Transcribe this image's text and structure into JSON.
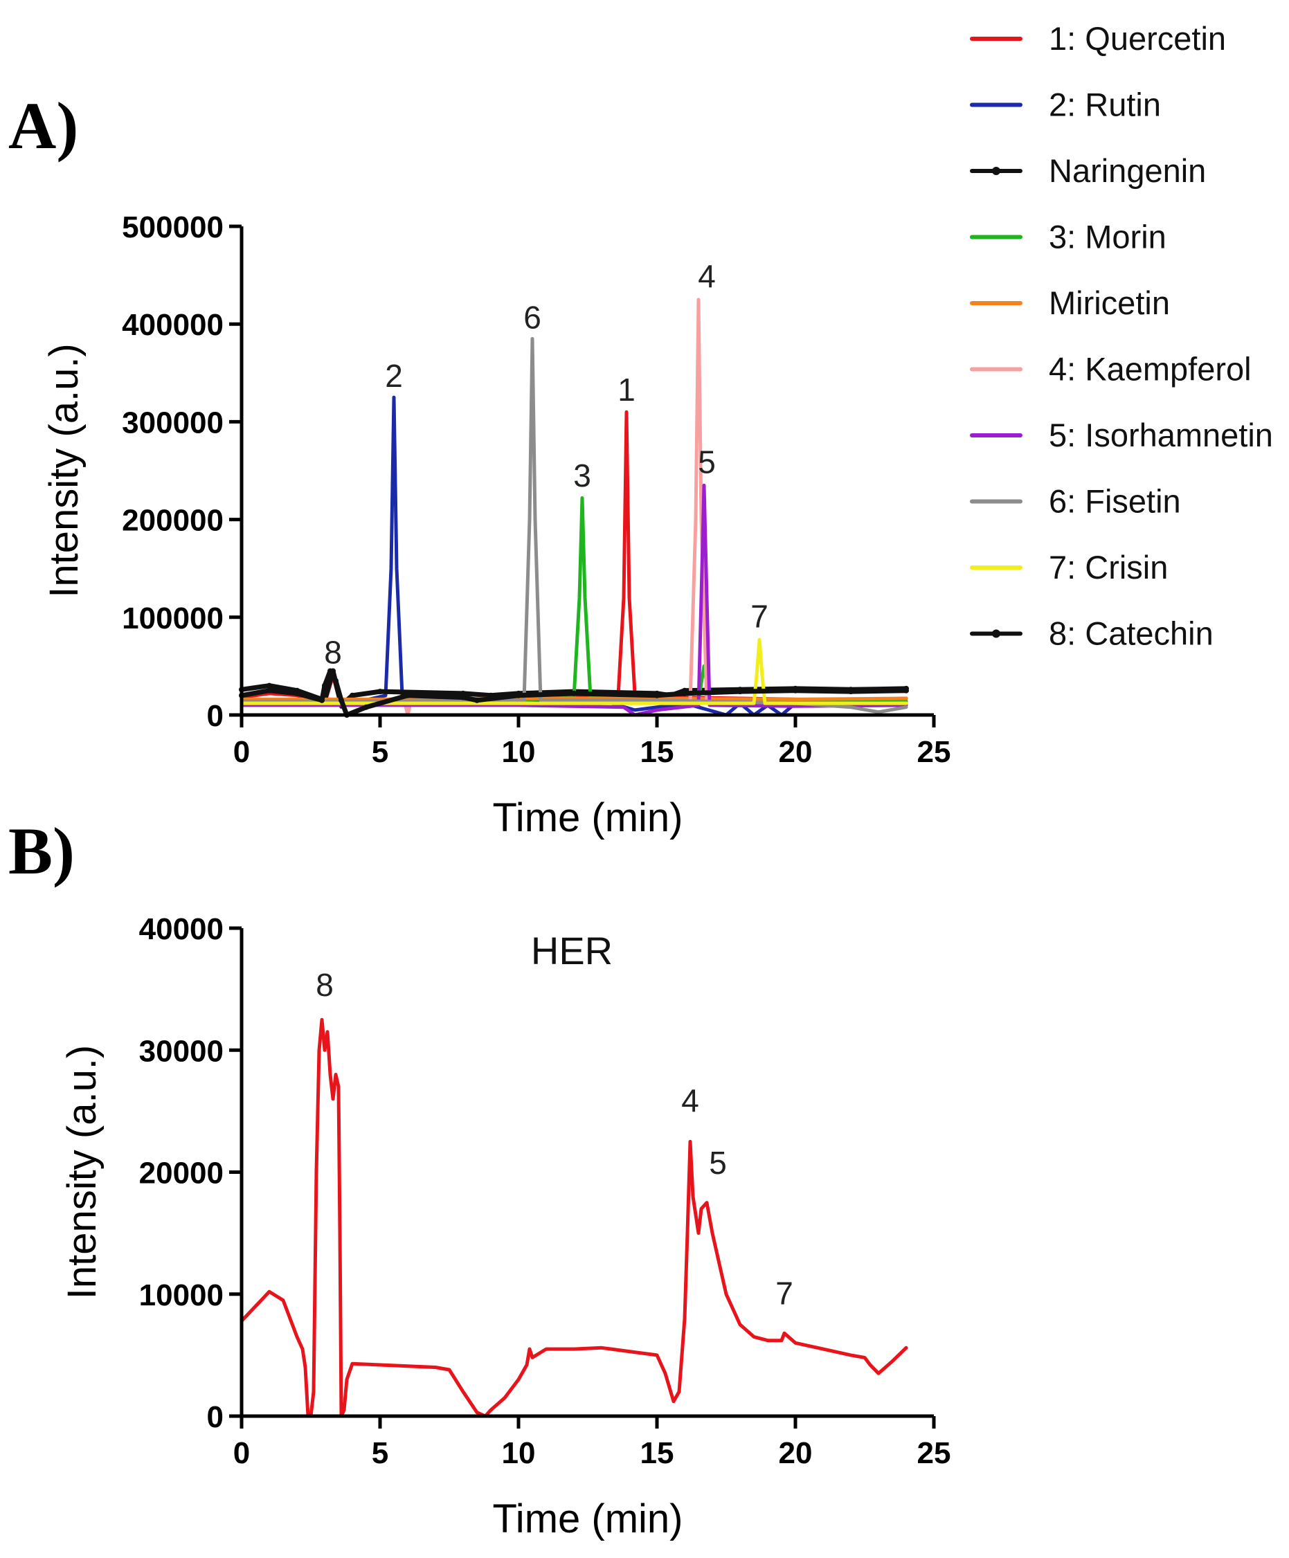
{
  "chart_data": [
    {
      "panel": "A)",
      "type": "line",
      "xlabel": "Time (min)",
      "ylabel": "Intensity (a.u.)",
      "xlim": [
        0,
        25
      ],
      "ylim": [
        0,
        500000
      ],
      "xticks": [
        0,
        5,
        10,
        15,
        20,
        25
      ],
      "yticks": [
        0,
        100000,
        200000,
        300000,
        400000,
        500000
      ],
      "legend_position": "right",
      "series": [
        {
          "name": "1: Quercetin",
          "color": "#e8141b",
          "marker": false,
          "x": [
            0,
            1,
            2,
            3.0,
            3.3,
            3.6,
            4,
            6,
            8,
            10,
            12,
            13.6,
            13.8,
            13.9,
            14.0,
            14.2,
            15,
            16,
            18,
            20,
            22,
            24
          ],
          "y": [
            18000,
            22000,
            20000,
            12000,
            40000,
            8000,
            16000,
            15000,
            14000,
            16000,
            18000,
            20000,
            120000,
            310000,
            120000,
            22000,
            20000,
            18000,
            17000,
            16000,
            15000,
            17000
          ]
        },
        {
          "name": "2: Rutin",
          "color": "#1b2aa8",
          "marker": false,
          "x": [
            0,
            2,
            4,
            5.2,
            5.4,
            5.5,
            5.6,
            5.8,
            8,
            10,
            13,
            14.2,
            15,
            16,
            17.5,
            18,
            18.5,
            19,
            19.5,
            20,
            24
          ],
          "y": [
            15000,
            14000,
            12000,
            20000,
            150000,
            325000,
            150000,
            20000,
            16000,
            15000,
            15000,
            5000,
            8000,
            12000,
            0,
            12000,
            0,
            10000,
            0,
            12000,
            12000
          ]
        },
        {
          "name": "Naringenin",
          "color": "#111111",
          "marker": true,
          "x": [
            0,
            1,
            2,
            3.0,
            3.3,
            3.6,
            4,
            5,
            8,
            9,
            10,
            12,
            15,
            15.5,
            16,
            18,
            20,
            22,
            24
          ],
          "y": [
            26000,
            30000,
            25000,
            15000,
            45000,
            10000,
            20000,
            24000,
            22000,
            20000,
            22000,
            24000,
            22000,
            20000,
            25000,
            26000,
            27000,
            26000,
            27000
          ]
        },
        {
          "name": "3: Morin",
          "color": "#1fb51f",
          "marker": false,
          "x": [
            0,
            5,
            10,
            12.0,
            12.2,
            12.3,
            12.4,
            12.6,
            15,
            16.5,
            16.7,
            16.9,
            20,
            24
          ],
          "y": [
            14000,
            14000,
            15000,
            18000,
            120000,
            222000,
            120000,
            18000,
            15000,
            15000,
            50000,
            15000,
            14000,
            14000
          ]
        },
        {
          "name": "Miricetin",
          "color": "#f5821f",
          "marker": false,
          "x": [
            0,
            5,
            10,
            15,
            20,
            24
          ],
          "y": [
            16000,
            16000,
            17000,
            17000,
            16000,
            17000
          ]
        },
        {
          "name": "4: Kaempferol",
          "color": "#f7a0a0",
          "marker": false,
          "x": [
            0,
            5,
            5.9,
            6.0,
            6.1,
            10,
            16.2,
            16.4,
            16.5,
            16.6,
            16.8,
            20,
            24
          ],
          "y": [
            12000,
            12000,
            12000,
            0,
            12000,
            12000,
            12000,
            200000,
            425000,
            200000,
            12000,
            11000,
            12000
          ]
        },
        {
          "name": "5: Isorhamnetin",
          "color": "#9b1fd0",
          "marker": false,
          "x": [
            0,
            10,
            13.8,
            14.2,
            15,
            16.5,
            16.6,
            16.7,
            16.8,
            16.9,
            20,
            24
          ],
          "y": [
            10000,
            10000,
            8000,
            0,
            5000,
            10000,
            120000,
            235000,
            120000,
            10000,
            9000,
            10000
          ]
        },
        {
          "name": "6: Fisetin",
          "color": "#8c8c8c",
          "marker": false,
          "x": [
            0,
            5,
            10.2,
            10.4,
            10.5,
            10.6,
            10.8,
            15,
            20,
            22,
            23,
            24
          ],
          "y": [
            14000,
            14000,
            15000,
            200000,
            385000,
            200000,
            15000,
            15000,
            12000,
            8000,
            3000,
            8000
          ]
        },
        {
          "name": "7: Crisin",
          "color": "#f2ee1a",
          "marker": false,
          "x": [
            0,
            10,
            18.5,
            18.6,
            18.7,
            18.8,
            18.9,
            24
          ],
          "y": [
            12000,
            12000,
            12000,
            40000,
            77000,
            40000,
            12000,
            12000
          ]
        },
        {
          "name": "8: Catechin",
          "color": "#111111",
          "marker": true,
          "x": [
            0,
            1,
            2,
            2.9,
            3.0,
            3.2,
            3.4,
            3.6,
            3.8,
            4.5,
            6,
            8,
            8.5,
            10,
            12,
            15,
            16,
            18,
            20,
            22,
            24
          ],
          "y": [
            20000,
            25000,
            22000,
            15000,
            30000,
            45000,
            35000,
            15000,
            0,
            8000,
            20000,
            18000,
            15000,
            20000,
            22000,
            20000,
            22000,
            24000,
            25000,
            24000,
            25000
          ]
        }
      ],
      "peak_labels": [
        {
          "text": "8",
          "x": 3.3,
          "y": 47000
        },
        {
          "text": "2",
          "x": 5.5,
          "y": 330000
        },
        {
          "text": "6",
          "x": 10.5,
          "y": 390000
        },
        {
          "text": "3",
          "x": 12.3,
          "y": 228000
        },
        {
          "text": "1",
          "x": 13.9,
          "y": 316000
        },
        {
          "text": "4",
          "x": 16.8,
          "y": 432000
        },
        {
          "text": "5",
          "x": 16.8,
          "y": 242000
        },
        {
          "text": "7",
          "x": 18.7,
          "y": 84000
        }
      ]
    },
    {
      "panel": "B)",
      "type": "line",
      "title": "HER",
      "xlabel": "Time (min)",
      "ylabel": "Intensity (a.u.)",
      "xlim": [
        0,
        25
      ],
      "ylim": [
        0,
        40000
      ],
      "xticks": [
        0,
        5,
        10,
        15,
        20,
        25
      ],
      "yticks": [
        0,
        10000,
        20000,
        30000,
        40000
      ],
      "series": [
        {
          "name": "HER",
          "color": "#e8141b",
          "x": [
            0,
            0.5,
            1.0,
            1.5,
            2.0,
            2.2,
            2.3,
            2.4,
            2.5,
            2.6,
            2.7,
            2.8,
            2.9,
            3.0,
            3.1,
            3.2,
            3.3,
            3.4,
            3.5,
            3.55,
            3.6,
            3.7,
            3.8,
            4.0,
            5,
            6,
            7,
            7.5,
            8.0,
            8.5,
            8.8,
            9.0,
            9.5,
            10.0,
            10.3,
            10.4,
            10.5,
            11,
            12,
            13,
            14,
            15.0,
            15.3,
            15.6,
            15.8,
            16.0,
            16.1,
            16.2,
            16.3,
            16.5,
            16.6,
            16.8,
            17.0,
            17.5,
            18.0,
            18.5,
            19.0,
            19.5,
            19.6,
            20,
            21,
            22,
            22.5,
            22.7,
            23.0,
            23.5,
            24.0
          ],
          "y": [
            7800,
            9000,
            10200,
            9500,
            6500,
            5500,
            4000,
            0,
            0,
            2000,
            20000,
            30000,
            32500,
            30000,
            31500,
            28000,
            26000,
            28000,
            27000,
            15000,
            0,
            500,
            3000,
            4300,
            4200,
            4100,
            4000,
            3800,
            2000,
            300,
            0,
            500,
            1500,
            3000,
            4200,
            5500,
            4800,
            5500,
            5500,
            5600,
            5300,
            5000,
            3500,
            1200,
            2000,
            8000,
            15000,
            22500,
            18000,
            15000,
            17000,
            17500,
            15000,
            10000,
            7500,
            6500,
            6200,
            6200,
            6800,
            6000,
            5500,
            5000,
            4800,
            4200,
            3500,
            4500,
            5600
          ]
        }
      ],
      "peak_labels": [
        {
          "text": "8",
          "x": 3.0,
          "y": 34000
        },
        {
          "text": "4",
          "x": 16.2,
          "y": 24500
        },
        {
          "text": "5",
          "x": 17.2,
          "y": 19400
        },
        {
          "text": "7",
          "x": 19.6,
          "y": 8700
        }
      ]
    }
  ]
}
